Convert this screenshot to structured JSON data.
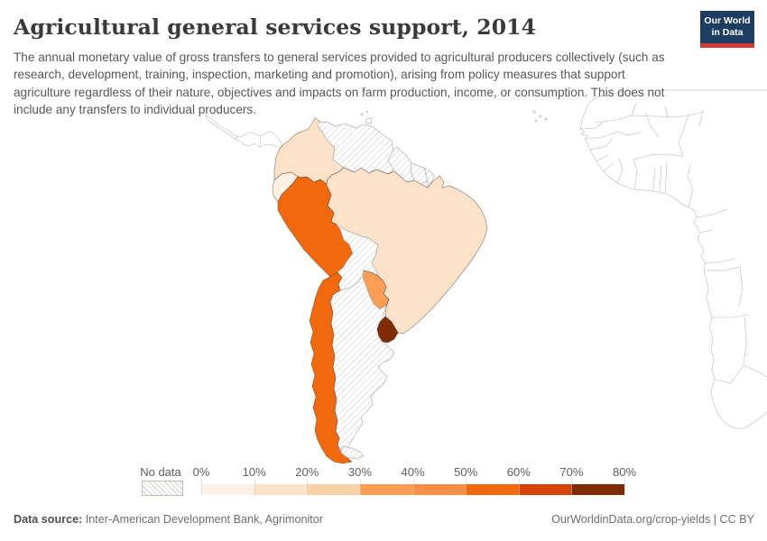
{
  "header": {
    "title": "Agricultural general services support, 2014",
    "subtitle": "The annual monetary value of gross transfers to general services provided to agricultural producers collectively (such as research, development, training, inspection, marketing and promotion), arising from policy measures that support agriculture regardless of their nature, objectives and impacts on farm production, income, or consumption. This does not include any transfers to individual producers.",
    "logo": {
      "line1": "Our World",
      "line2": "in Data",
      "bg_color": "#1d3d63",
      "stripe_color": "#cf3a33"
    }
  },
  "legend": {
    "no_data_label": "No data",
    "tick_labels": [
      "0%",
      "10%",
      "20%",
      "30%",
      "40%",
      "50%",
      "60%",
      "70%",
      "80%"
    ],
    "bins": [
      {
        "range": "0-10%",
        "color": "#fdf0e4"
      },
      {
        "range": "10-20%",
        "color": "#fbe2c9"
      },
      {
        "range": "20-30%",
        "color": "#fbd2a6"
      },
      {
        "range": "30-40%",
        "color": "#fb9d55"
      },
      {
        "range": "40-50%",
        "color": "#f98e46"
      },
      {
        "range": "50-60%",
        "color": "#f2690d"
      },
      {
        "range": "60-70%",
        "color": "#d84502"
      },
      {
        "range": "70-80%",
        "color": "#7f2b04"
      }
    ]
  },
  "map": {
    "type": "choropleth",
    "region": "South America",
    "countries": [
      {
        "id": "ecuador",
        "name": "Ecuador",
        "bin": "0-10%",
        "color": "#fdf0e4"
      },
      {
        "id": "colombia",
        "name": "Colombia",
        "bin": "10-20%",
        "color": "#fbe2c9"
      },
      {
        "id": "brazil",
        "name": "Brazil",
        "bin": "10-20%",
        "color": "#fbe2c9"
      },
      {
        "id": "paraguay",
        "name": "Paraguay",
        "bin": "30-40%",
        "color": "#fb9d55"
      },
      {
        "id": "peru",
        "name": "Peru",
        "bin": "50-60%",
        "color": "#f2690d"
      },
      {
        "id": "chile",
        "name": "Chile",
        "bin": "50-60%",
        "color": "#f2690d"
      },
      {
        "id": "uruguay",
        "name": "Uruguay",
        "bin": "70-80%",
        "color": "#7f2b04"
      },
      {
        "id": "venezuela",
        "name": "Venezuela",
        "bin": "No data",
        "color": null
      },
      {
        "id": "guyana",
        "name": "Guyana",
        "bin": "No data",
        "color": null
      },
      {
        "id": "suriname",
        "name": "Suriname",
        "bin": "No data",
        "color": null
      },
      {
        "id": "french-guiana",
        "name": "French Guiana",
        "bin": "No data",
        "color": null
      },
      {
        "id": "bolivia",
        "name": "Bolivia",
        "bin": "No data",
        "color": null
      },
      {
        "id": "argentina",
        "name": "Argentina",
        "bin": "No data",
        "color": null
      },
      {
        "id": "argentina-tdf",
        "name": "Argentina",
        "bin": "No data",
        "color": null
      }
    ]
  },
  "footer": {
    "source_label": "Data source:",
    "source_value": " Inter-American Development Bank, Agrimonitor",
    "right_text": "OurWorldinData.org/crop-yields | CC BY"
  }
}
